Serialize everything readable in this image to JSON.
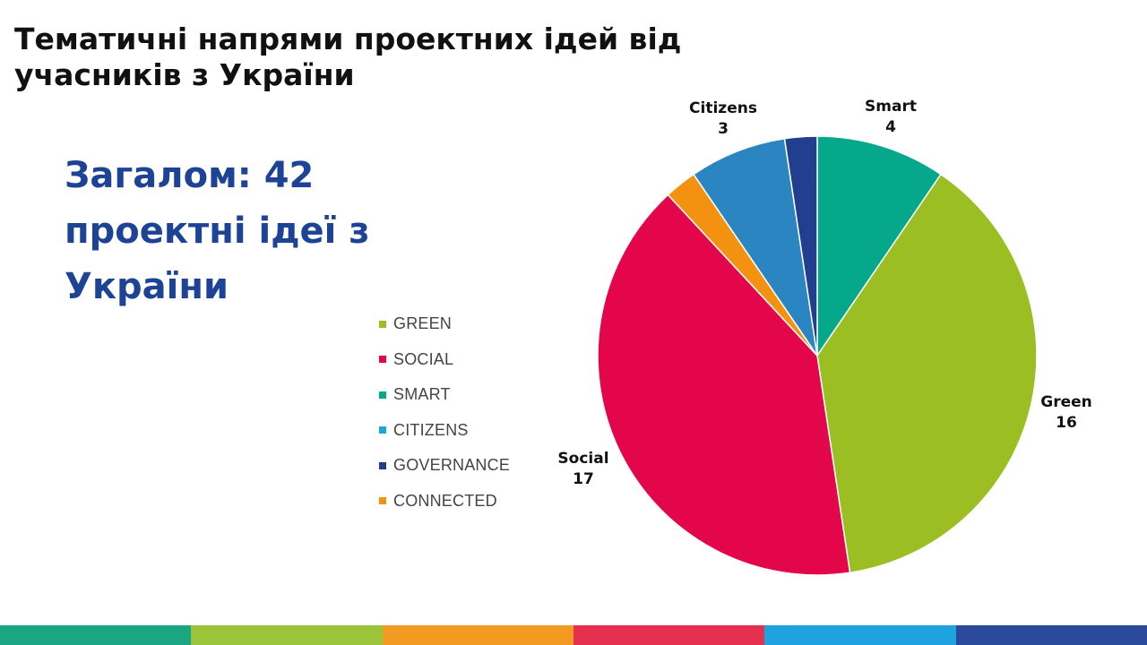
{
  "header": {
    "title": "Тематичні напрями проектних ідей від учасників з України"
  },
  "summary": {
    "text": "Загалом: 42 проектні ідеї з України"
  },
  "chart_data": {
    "type": "pie",
    "title": "",
    "total": 42,
    "slices": [
      {
        "key": "smart",
        "legend": "SMART",
        "name": "Smart",
        "value": 4,
        "color": "#05a88a"
      },
      {
        "key": "green",
        "legend": "GREEN",
        "name": "Green",
        "value": 16,
        "color": "#9bbe22"
      },
      {
        "key": "social",
        "legend": "SOCIAL",
        "name": "Social",
        "value": 17,
        "color": "#e4064a"
      },
      {
        "key": "connected",
        "legend": "CONNECTED",
        "name": "",
        "value": 1,
        "color": "#f39210"
      },
      {
        "key": "citizens",
        "legend": "CITIZENS",
        "name": "Citizens",
        "value": 3,
        "color": "#2a85c1"
      },
      {
        "key": "governance",
        "legend": "GOVERNANCE",
        "name": "",
        "value": 1,
        "color": "#213f8e"
      }
    ],
    "legend": {
      "placement": "left",
      "order": [
        "GREEN",
        "SOCIAL",
        "SMART",
        "CITIZENS",
        "GOVERNANCE",
        "CONNECTED"
      ],
      "colors": [
        "#9bbe22",
        "#e4064a",
        "#05a88a",
        "#19a7e0",
        "#213f8e",
        "#f39210"
      ]
    }
  },
  "slice_labels": {
    "smart": {
      "name": "Smart",
      "value": "4"
    },
    "green": {
      "name": "Green",
      "value": "16"
    },
    "social": {
      "name": "Social",
      "value": "17"
    },
    "citizens": {
      "name": "Citizens",
      "value": "3"
    }
  },
  "footer": {
    "colors": [
      "#1aa583",
      "#9bc43a",
      "#f39a22",
      "#e5304f",
      "#1fa3e0",
      "#2c4a9b"
    ]
  }
}
